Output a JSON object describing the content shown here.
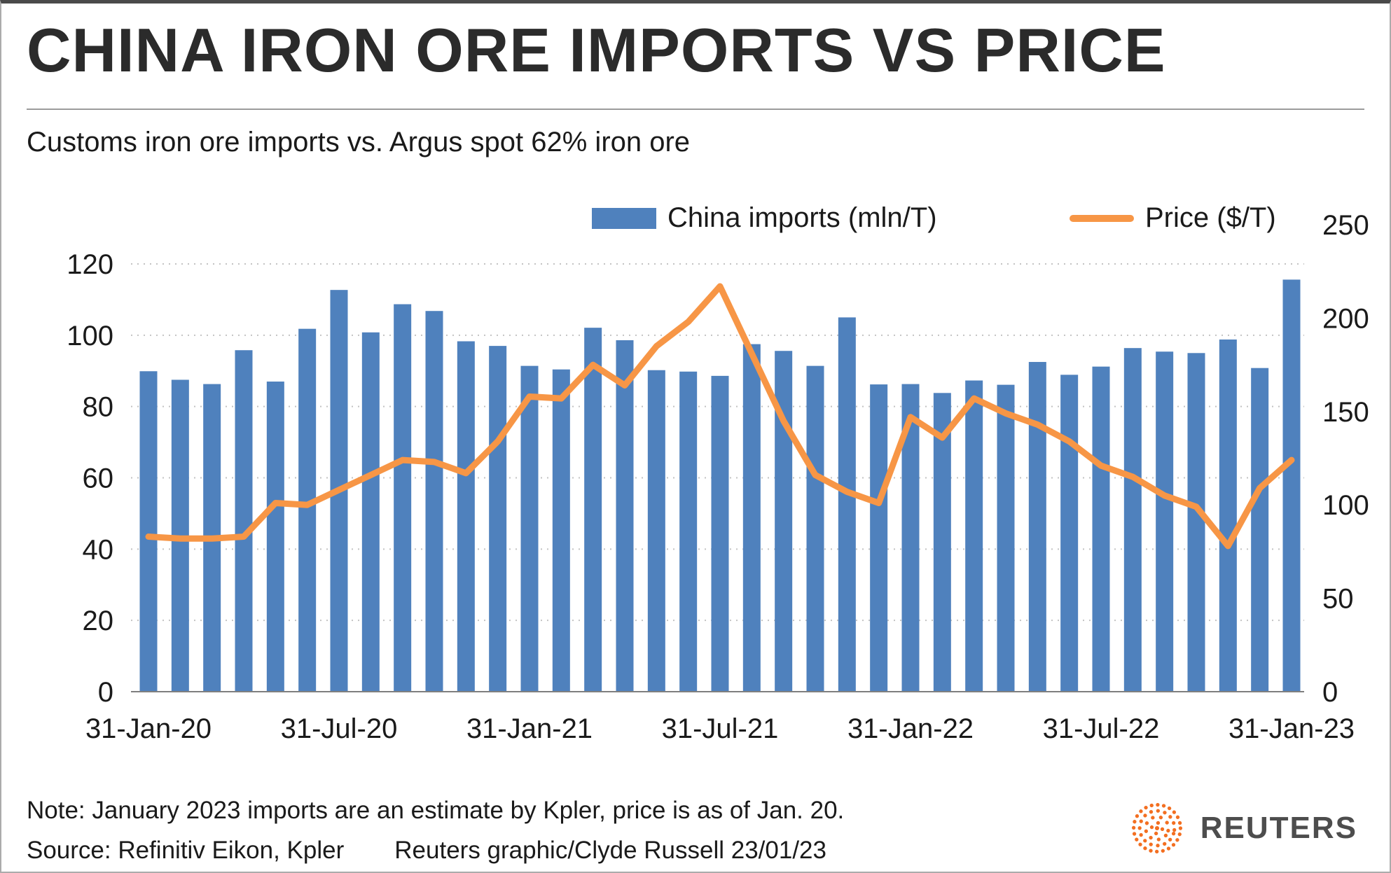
{
  "header": {
    "title": "CHINA IRON ORE IMPORTS VS PRICE",
    "subtitle": "Customs iron ore imports vs. Argus spot 62% iron ore"
  },
  "legend": {
    "imports_label": "China imports (mln/T)",
    "price_label": "Price ($/T)"
  },
  "footer": {
    "note": "Note: January 2023 imports are an estimate by Kpler, price is as of Jan. 20.",
    "source": "Source: Refinitiv Eikon, Kpler",
    "credit": "Reuters graphic/Clyde Russell 23/01/23",
    "logo_text": "REUTERS"
  },
  "colors": {
    "bars": "#4f81bd",
    "line": "#f79646",
    "grid": "#c3c3c3",
    "axis": "#7f7f7f",
    "text": "#1a1a1a",
    "logo_orange": "#f36f21"
  },
  "chart_data": {
    "type": "bar",
    "subtype": "bar-plus-line-dual-axis",
    "title": "CHINA IRON ORE IMPORTS VS PRICE",
    "subtitle": "Customs iron ore imports vs. Argus spot 62% iron ore",
    "grid": "dotted-horizontal",
    "legend_position": "top",
    "categories": [
      "Jan-20",
      "Feb-20",
      "Mar-20",
      "Apr-20",
      "May-20",
      "Jun-20",
      "Jul-20",
      "Aug-20",
      "Sep-20",
      "Oct-20",
      "Nov-20",
      "Dec-20",
      "Jan-21",
      "Feb-21",
      "Mar-21",
      "Apr-21",
      "May-21",
      "Jun-21",
      "Jul-21",
      "Aug-21",
      "Sep-21",
      "Oct-21",
      "Nov-21",
      "Dec-21",
      "Jan-22",
      "Feb-22",
      "Mar-22",
      "Apr-22",
      "May-22",
      "Jun-22",
      "Jul-22",
      "Aug-22",
      "Sep-22",
      "Oct-22",
      "Nov-22",
      "Dec-22",
      "Jan-23"
    ],
    "series": [
      {
        "name": "China imports (mln/T)",
        "type": "bar",
        "axis": "left",
        "values": [
          89.9,
          87.5,
          86.3,
          95.8,
          87.0,
          101.8,
          112.7,
          100.8,
          108.7,
          106.8,
          98.3,
          97.0,
          91.4,
          90.4,
          102.1,
          98.6,
          90.2,
          89.8,
          88.6,
          97.5,
          95.6,
          91.4,
          105.0,
          86.2,
          86.3,
          83.8,
          87.3,
          86.1,
          92.5,
          88.9,
          91.2,
          96.4,
          95.4,
          95.0,
          98.8,
          90.8,
          115.6
        ]
      },
      {
        "name": "Price ($/T)",
        "type": "line",
        "axis": "right",
        "values": [
          83,
          82,
          82,
          83,
          101,
          100,
          108,
          116,
          124,
          123,
          117,
          134,
          158,
          157,
          175,
          164,
          185,
          198,
          217,
          181,
          145,
          116,
          107,
          101,
          147,
          136,
          157,
          149,
          143,
          134,
          121,
          115,
          105,
          99,
          78,
          109,
          124
        ]
      }
    ],
    "x_ticks": [
      {
        "index": 0,
        "label": "31-Jan-20"
      },
      {
        "index": 6,
        "label": "31-Jul-20"
      },
      {
        "index": 12,
        "label": "31-Jan-21"
      },
      {
        "index": 18,
        "label": "31-Jul-21"
      },
      {
        "index": 24,
        "label": "31-Jan-22"
      },
      {
        "index": 30,
        "label": "31-Jul-22"
      },
      {
        "index": 36,
        "label": "31-Jan-23"
      }
    ],
    "left_axis": {
      "label": "China imports (mln/T)",
      "min": 0,
      "max": 120,
      "ticks": [
        0,
        20,
        40,
        60,
        80,
        100,
        120
      ]
    },
    "right_axis": {
      "label": "Price ($/T)",
      "min": 0,
      "max": 250,
      "ticks": [
        0,
        50,
        100,
        150,
        200,
        250
      ]
    }
  }
}
